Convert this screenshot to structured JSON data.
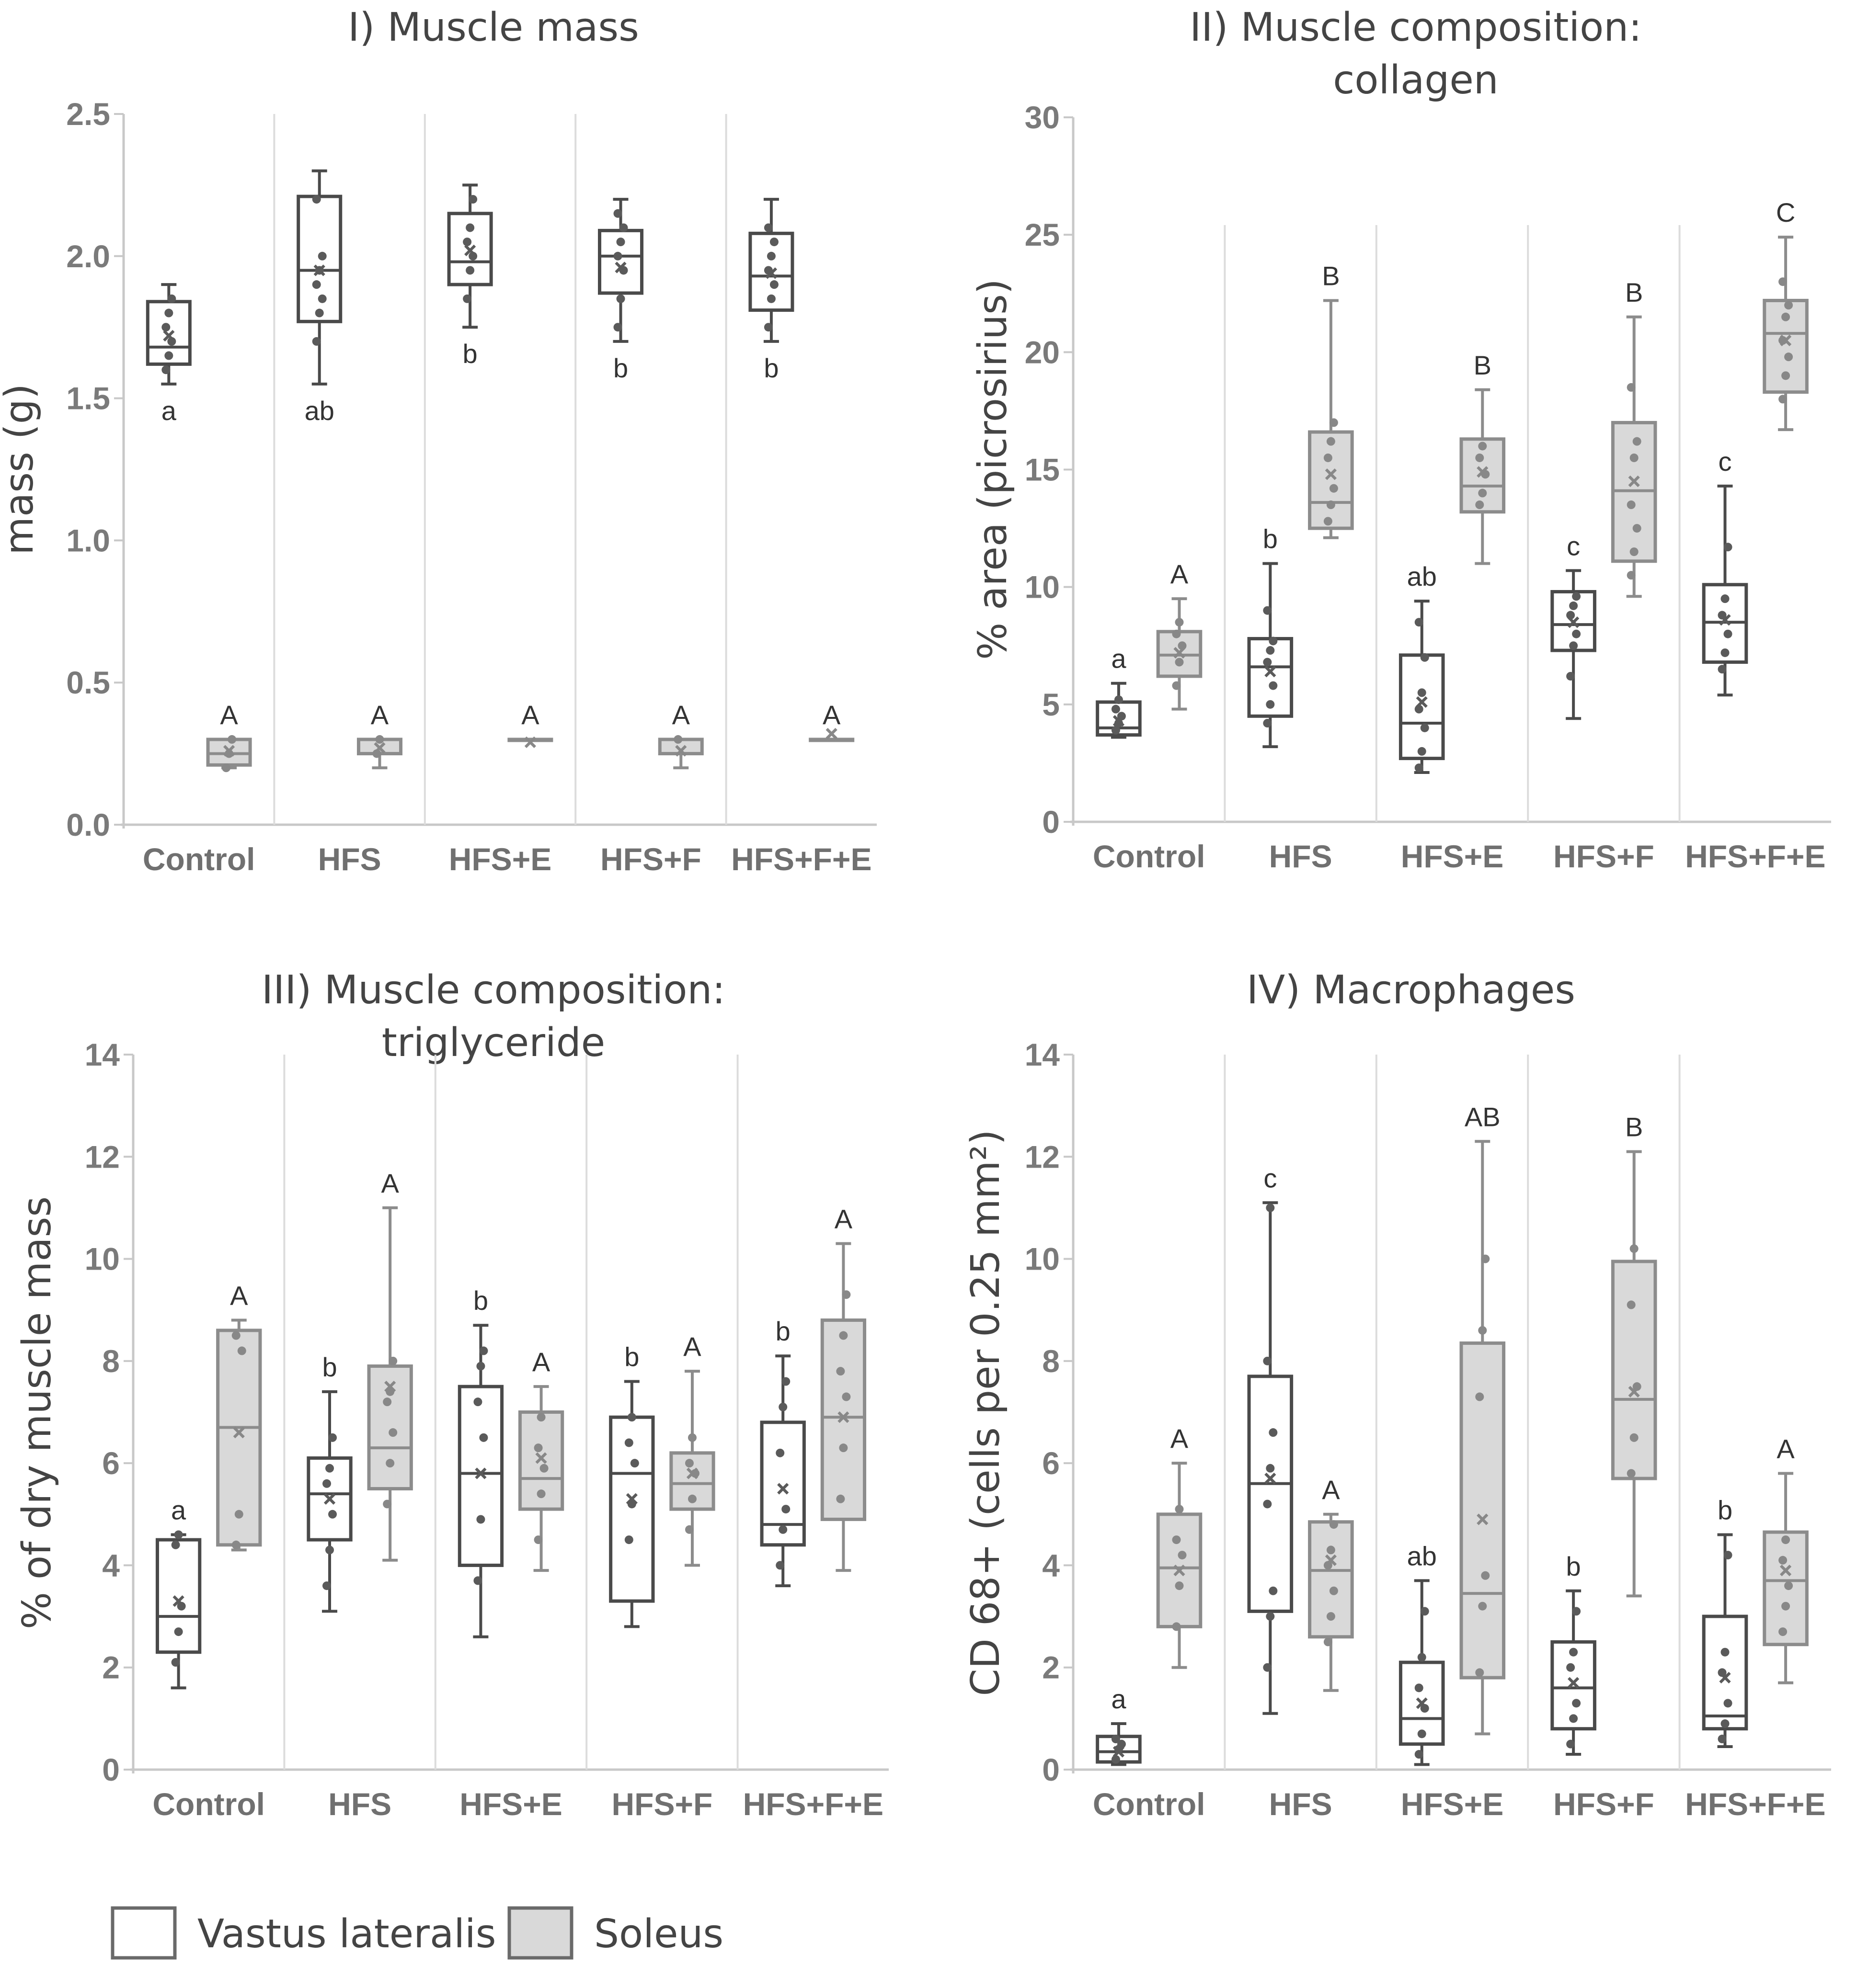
{
  "legend": {
    "vastus_label": "Vastus lateralis",
    "soleus_label": "Soleus",
    "vastus_color": "#ffffff",
    "soleus_color": "#d9d9d9"
  },
  "colors": {
    "vastus_stroke": "#4a4a4a",
    "soleus_stroke": "#8c8c8c",
    "points": "#5a5a5a"
  },
  "chart_data": [
    {
      "id": "mass",
      "type": "box",
      "title_lines": [
        "I) Muscle mass"
      ],
      "ylabel": "mass (g)",
      "ylim": [
        0,
        2.5
      ],
      "yticks": [
        "0.0",
        "0.5",
        "1.0",
        "1.5",
        "2.0",
        "2.5"
      ],
      "categories": [
        "Control",
        "HFS",
        "HFS+E",
        "HFS+F",
        "HFS+F+E"
      ],
      "series": [
        {
          "name": "Vastus lateralis",
          "boxes": [
            {
              "min": 1.55,
              "q1": 1.62,
              "median": 1.68,
              "q3": 1.84,
              "max": 1.9,
              "mean": 1.72,
              "points": [
                1.6,
                1.65,
                1.7,
                1.75,
                1.8,
                1.85
              ],
              "label": "a"
            },
            {
              "min": 1.55,
              "q1": 1.77,
              "median": 1.95,
              "q3": 2.21,
              "max": 2.3,
              "mean": 1.95,
              "points": [
                1.7,
                1.8,
                1.85,
                1.9,
                1.95,
                2.0,
                2.2
              ],
              "label": "ab"
            },
            {
              "min": 1.75,
              "q1": 1.9,
              "median": 1.98,
              "q3": 2.15,
              "max": 2.25,
              "mean": 2.02,
              "points": [
                1.85,
                1.95,
                2.0,
                2.05,
                2.1,
                2.2
              ],
              "label": "b"
            },
            {
              "min": 1.7,
              "q1": 1.87,
              "median": 2.0,
              "q3": 2.09,
              "max": 2.2,
              "mean": 1.96,
              "points": [
                1.75,
                1.85,
                1.95,
                2.0,
                2.05,
                2.1,
                2.15
              ],
              "label": "b"
            },
            {
              "min": 1.7,
              "q1": 1.81,
              "median": 1.93,
              "q3": 2.08,
              "max": 2.2,
              "mean": 1.94,
              "points": [
                1.75,
                1.85,
                1.9,
                1.95,
                2.0,
                2.05,
                2.1
              ],
              "label": "b"
            }
          ]
        },
        {
          "name": "Soleus",
          "boxes": [
            {
              "min": 0.2,
              "q1": 0.21,
              "median": 0.25,
              "q3": 0.3,
              "max": 0.3,
              "mean": 0.26,
              "points": [
                0.2,
                0.25,
                0.3
              ],
              "label": "A"
            },
            {
              "min": 0.2,
              "q1": 0.25,
              "median": 0.3,
              "q3": 0.3,
              "max": 0.3,
              "mean": 0.27,
              "points": [
                0.25,
                0.3
              ],
              "label": "A"
            },
            {
              "min": 0.3,
              "q1": 0.3,
              "median": 0.3,
              "q3": 0.3,
              "max": 0.3,
              "mean": 0.29,
              "points": [],
              "label": "A"
            },
            {
              "min": 0.2,
              "q1": 0.25,
              "median": 0.3,
              "q3": 0.3,
              "max": 0.3,
              "mean": 0.26,
              "points": [
                0.3
              ],
              "label": "A"
            },
            {
              "min": 0.3,
              "q1": 0.3,
              "median": 0.3,
              "q3": 0.3,
              "max": 0.3,
              "mean": 0.32,
              "points": [],
              "label": "A"
            }
          ]
        }
      ]
    },
    {
      "id": "collagen",
      "type": "box",
      "title_lines": [
        "II) Muscle composition:",
        "collagen"
      ],
      "ylabel": "% area (picrosirius)",
      "ylim": [
        0,
        30
      ],
      "yticks": [
        "0",
        "5",
        "10",
        "15",
        "20",
        "25",
        "30"
      ],
      "categories": [
        "Control",
        "HFS",
        "HFS+E",
        "HFS+F",
        "HFS+F+E"
      ],
      "series": [
        {
          "name": "Vastus lateralis",
          "boxes": [
            {
              "min": 3.6,
              "q1": 3.7,
              "median": 4.0,
              "q3": 5.1,
              "max": 5.9,
              "mean": 4.3,
              "points": [
                3.9,
                4.2,
                4.5,
                4.8,
                5.2
              ],
              "label": "a"
            },
            {
              "min": 3.2,
              "q1": 4.5,
              "median": 6.6,
              "q3": 7.8,
              "max": 11.0,
              "mean": 6.4,
              "points": [
                4.2,
                5.0,
                5.8,
                6.8,
                7.3,
                7.7,
                9.0
              ],
              "label": "b"
            },
            {
              "min": 2.1,
              "q1": 2.7,
              "median": 4.2,
              "q3": 7.1,
              "max": 9.4,
              "mean": 5.1,
              "points": [
                2.3,
                3.0,
                4.0,
                4.8,
                5.5,
                7.0,
                8.5
              ],
              "label": "ab"
            },
            {
              "min": 4.4,
              "q1": 7.3,
              "median": 8.4,
              "q3": 9.8,
              "max": 10.7,
              "mean": 8.5,
              "points": [
                6.2,
                7.5,
                8.0,
                8.8,
                9.2,
                9.6
              ],
              "label": "c"
            },
            {
              "min": 5.4,
              "q1": 6.8,
              "median": 8.5,
              "q3": 10.1,
              "max": 14.3,
              "mean": 8.6,
              "points": [
                6.5,
                7.2,
                8.0,
                8.8,
                9.5,
                11.7
              ],
              "label": "c"
            }
          ]
        },
        {
          "name": "Soleus",
          "boxes": [
            {
              "min": 4.8,
              "q1": 6.2,
              "median": 7.1,
              "q3": 8.1,
              "max": 9.5,
              "mean": 7.2,
              "points": [
                5.8,
                6.8,
                7.5,
                8.0,
                8.5
              ],
              "label": "A"
            },
            {
              "min": 12.1,
              "q1": 12.5,
              "median": 13.6,
              "q3": 16.6,
              "max": 22.2,
              "mean": 14.8,
              "points": [
                12.8,
                13.5,
                14.2,
                15.5,
                16.2,
                17.0
              ],
              "label": "B"
            },
            {
              "min": 11.0,
              "q1": 13.2,
              "median": 14.3,
              "q3": 16.3,
              "max": 18.4,
              "mean": 14.9,
              "points": [
                13.5,
                14.0,
                14.8,
                15.5,
                16.0
              ],
              "label": "B"
            },
            {
              "min": 9.6,
              "q1": 11.1,
              "median": 14.1,
              "q3": 17.0,
              "max": 21.5,
              "mean": 14.5,
              "points": [
                10.5,
                11.5,
                12.5,
                13.5,
                15.5,
                16.2,
                18.5
              ],
              "label": "B"
            },
            {
              "min": 16.7,
              "q1": 18.3,
              "median": 20.8,
              "q3": 22.2,
              "max": 24.9,
              "mean": 20.5,
              "points": [
                18.0,
                19.0,
                19.8,
                20.5,
                21.5,
                22.0,
                23.0
              ],
              "label": "C"
            }
          ]
        }
      ]
    },
    {
      "id": "triglyceride",
      "type": "box",
      "title_lines": [
        "III) Muscle composition:",
        "triglyceride"
      ],
      "ylabel": "% of dry muscle mass",
      "ylim": [
        0,
        14
      ],
      "yticks": [
        "0",
        "2",
        "4",
        "6",
        "8",
        "10",
        "12",
        "14"
      ],
      "categories": [
        "Control",
        "HFS",
        "HFS+E",
        "HFS+F",
        "HFS+F+E"
      ],
      "series": [
        {
          "name": "Vastus lateralis",
          "boxes": [
            {
              "min": 1.6,
              "q1": 2.3,
              "median": 3.0,
              "q3": 4.5,
              "max": 4.6,
              "mean": 3.3,
              "points": [
                2.1,
                2.7,
                3.2,
                4.4,
                4.6
              ],
              "label": "a"
            },
            {
              "min": 3.1,
              "q1": 4.5,
              "median": 5.4,
              "q3": 6.1,
              "max": 7.4,
              "mean": 5.3,
              "points": [
                3.6,
                4.3,
                5.0,
                5.6,
                5.9,
                6.5
              ],
              "label": "b"
            },
            {
              "min": 2.6,
              "q1": 4.0,
              "median": 5.8,
              "q3": 7.5,
              "max": 8.7,
              "mean": 5.8,
              "points": [
                3.7,
                4.9,
                6.5,
                7.2,
                7.9,
                8.2
              ],
              "label": "b"
            },
            {
              "min": 2.8,
              "q1": 3.3,
              "median": 5.8,
              "q3": 6.9,
              "max": 7.6,
              "mean": 5.3,
              "points": [
                4.5,
                5.2,
                6.0,
                6.4,
                6.9
              ],
              "label": "b"
            },
            {
              "min": 3.6,
              "q1": 4.4,
              "median": 4.8,
              "q3": 6.8,
              "max": 8.1,
              "mean": 5.5,
              "points": [
                4.0,
                4.7,
                5.1,
                6.2,
                7.1,
                7.6
              ],
              "label": "b"
            }
          ]
        },
        {
          "name": "Soleus",
          "boxes": [
            {
              "min": 4.3,
              "q1": 4.4,
              "median": 6.7,
              "q3": 8.6,
              "max": 8.8,
              "mean": 6.6,
              "points": [
                4.4,
                5.0,
                8.2,
                8.5
              ],
              "label": "A"
            },
            {
              "min": 4.1,
              "q1": 5.5,
              "median": 6.3,
              "q3": 7.9,
              "max": 11.0,
              "mean": 7.5,
              "points": [
                5.2,
                6.0,
                6.6,
                7.2,
                7.4,
                8.0
              ],
              "label": "A"
            },
            {
              "min": 3.9,
              "q1": 5.1,
              "median": 5.7,
              "q3": 7.0,
              "max": 7.5,
              "mean": 6.1,
              "points": [
                4.5,
                5.4,
                5.9,
                6.3,
                6.9
              ],
              "label": "A"
            },
            {
              "min": 4.0,
              "q1": 5.1,
              "median": 5.6,
              "q3": 6.2,
              "max": 7.8,
              "mean": 5.8,
              "points": [
                4.7,
                5.3,
                5.8,
                6.0,
                6.5
              ],
              "label": "A"
            },
            {
              "min": 3.9,
              "q1": 4.9,
              "median": 6.9,
              "q3": 8.8,
              "max": 10.3,
              "mean": 6.9,
              "points": [
                5.3,
                6.3,
                7.3,
                7.8,
                8.5,
                9.3
              ],
              "label": "A"
            }
          ]
        }
      ]
    },
    {
      "id": "macrophages",
      "type": "box",
      "title_lines": [
        "IV) Macrophages"
      ],
      "ylabel": "CD 68+ (cells per 0.25 mm²)",
      "ylim": [
        0,
        14
      ],
      "yticks": [
        "0",
        "2",
        "4",
        "6",
        "8",
        "10",
        "12",
        "14"
      ],
      "categories": [
        "Control",
        "HFS",
        "HFS+E",
        "HFS+F",
        "HFS+F+E"
      ],
      "series": [
        {
          "name": "Vastus lateralis",
          "boxes": [
            {
              "min": 0.1,
              "q1": 0.15,
              "median": 0.35,
              "q3": 0.65,
              "max": 0.9,
              "mean": 0.35,
              "points": [
                0.2,
                0.4,
                0.5,
                0.6
              ],
              "label": "a"
            },
            {
              "min": 1.1,
              "q1": 3.1,
              "median": 5.6,
              "q3": 7.7,
              "max": 11.1,
              "mean": 5.7,
              "points": [
                2.0,
                3.0,
                3.5,
                5.2,
                5.9,
                6.6,
                8.0,
                11.0
              ],
              "label": "c"
            },
            {
              "min": 0.1,
              "q1": 0.5,
              "median": 1.0,
              "q3": 2.1,
              "max": 3.7,
              "mean": 1.3,
              "points": [
                0.3,
                0.7,
                1.2,
                1.6,
                2.2,
                3.1
              ],
              "label": "ab"
            },
            {
              "min": 0.3,
              "q1": 0.8,
              "median": 1.6,
              "q3": 2.5,
              "max": 3.5,
              "mean": 1.7,
              "points": [
                0.5,
                1.0,
                1.3,
                2.0,
                2.3,
                3.1
              ],
              "label": "b"
            },
            {
              "min": 0.45,
              "q1": 0.8,
              "median": 1.05,
              "q3": 3.0,
              "max": 4.6,
              "mean": 1.8,
              "points": [
                0.6,
                0.9,
                1.3,
                1.9,
                2.3,
                4.2
              ],
              "label": "b"
            }
          ]
        },
        {
          "name": "Soleus",
          "boxes": [
            {
              "min": 2.0,
              "q1": 2.8,
              "median": 3.95,
              "q3": 5.0,
              "max": 6.0,
              "mean": 3.9,
              "points": [
                2.8,
                3.6,
                4.2,
                4.5,
                5.1
              ],
              "label": "A"
            },
            {
              "min": 1.55,
              "q1": 2.6,
              "median": 3.9,
              "q3": 4.85,
              "max": 5.0,
              "mean": 4.1,
              "points": [
                2.5,
                3.0,
                3.5,
                4.0,
                4.3,
                4.8
              ],
              "label": "A"
            },
            {
              "min": 0.7,
              "q1": 1.8,
              "median": 3.45,
              "q3": 8.35,
              "max": 12.3,
              "mean": 4.9,
              "points": [
                1.9,
                3.2,
                3.8,
                7.3,
                8.6,
                10.0
              ],
              "label": "AB"
            },
            {
              "min": 3.4,
              "q1": 5.7,
              "median": 7.25,
              "q3": 9.95,
              "max": 12.1,
              "mean": 7.4,
              "points": [
                5.8,
                6.5,
                7.5,
                9.1,
                10.2
              ],
              "label": "B"
            },
            {
              "min": 1.7,
              "q1": 2.45,
              "median": 3.7,
              "q3": 4.65,
              "max": 5.8,
              "mean": 3.9,
              "points": [
                2.7,
                3.2,
                3.6,
                4.1,
                4.5
              ],
              "label": "A"
            }
          ]
        }
      ]
    }
  ]
}
